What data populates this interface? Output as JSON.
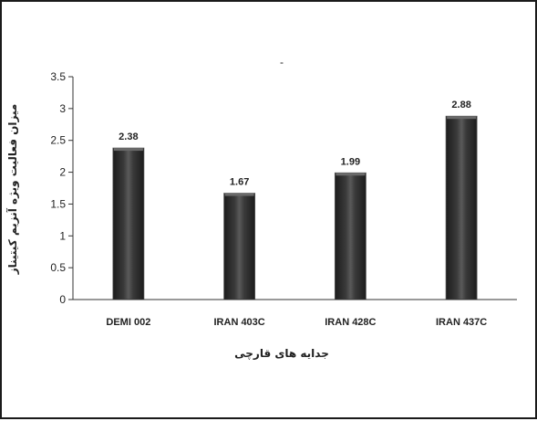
{
  "chart_data": {
    "type": "bar",
    "title": "-",
    "categories": [
      "DEMI 002",
      "IRAN 403C",
      "IRAN 428C",
      "IRAN 437C"
    ],
    "values": [
      2.38,
      1.67,
      1.99,
      2.88
    ],
    "data_labels": [
      "2.38",
      "1.67",
      "1.99",
      "2.88"
    ],
    "y_ticks": [
      "0",
      "0.5",
      "1",
      "1.5",
      "2",
      "2.5",
      "3",
      "3.5"
    ],
    "xlabel": "جدایه های قارچی",
    "ylabel": "میزان فعالیت ویژه آنزیم کیتیناز",
    "ylim": [
      0,
      3.5
    ],
    "grid": false,
    "legend": "none",
    "colors": {
      "bar": "#2b2b2b",
      "bar_edge": "#555555",
      "bar_highlight": "#6a6a6a",
      "axis": "#333333",
      "text": "#222222"
    }
  }
}
